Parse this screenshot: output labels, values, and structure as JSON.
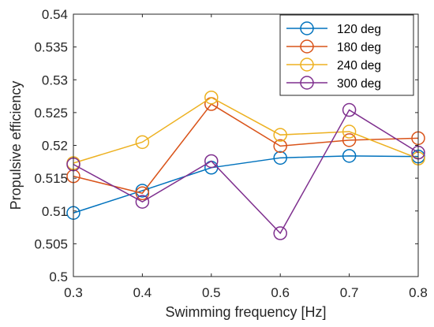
{
  "chart_data": {
    "type": "line",
    "title": "",
    "xlabel": "Swimming frequency [Hz]",
    "ylabel": "Propulsive efficiency",
    "x": [
      0.3,
      0.4,
      0.5,
      0.6,
      0.7,
      0.8
    ],
    "x_ticks": [
      "0.3",
      "0.4",
      "0.5",
      "0.6",
      "0.7",
      "0.8"
    ],
    "y_ticks": [
      "0.5",
      "0.505",
      "0.51",
      "0.515",
      "0.52",
      "0.525",
      "0.53",
      "0.535",
      "0.54"
    ],
    "xlim": [
      0.3,
      0.8
    ],
    "ylim": [
      0.5,
      0.54
    ],
    "grid": false,
    "legend_position": "top-right",
    "marker": "open-circle",
    "series": [
      {
        "name": "120 deg",
        "color": "#0072BD",
        "values": [
          0.5097,
          0.5131,
          0.5166,
          0.5181,
          0.5184,
          0.5183
        ]
      },
      {
        "name": "180 deg",
        "color": "#D95319",
        "values": [
          0.5153,
          0.5127,
          0.5263,
          0.5199,
          0.5208,
          0.5211
        ]
      },
      {
        "name": "240 deg",
        "color": "#EDB120",
        "values": [
          0.5173,
          0.5205,
          0.5273,
          0.5216,
          0.5221,
          0.518
        ]
      },
      {
        "name": "300 deg",
        "color": "#7E2F8E",
        "values": [
          0.5171,
          0.5114,
          0.5176,
          0.5066,
          0.5254,
          0.5189
        ]
      }
    ]
  }
}
